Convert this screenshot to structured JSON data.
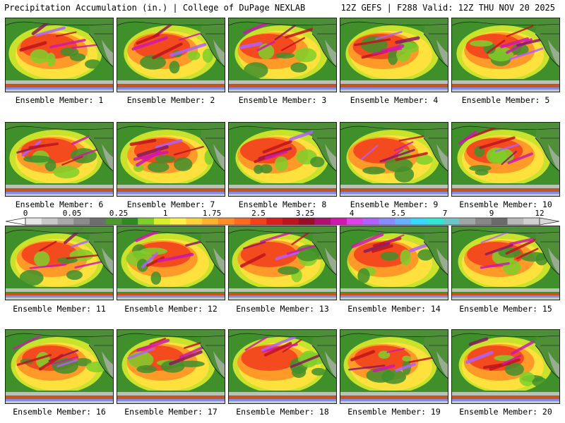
{
  "header": {
    "left": "Precipitation Accumulation (in.) | College of DuPage NEXLAB",
    "right": "12Z GEFS | F288 Valid: 12Z THU NOV 20 2025"
  },
  "panels": [
    {
      "caption": "Ensemble Member: 1"
    },
    {
      "caption": "Ensemble Member: 2"
    },
    {
      "caption": "Ensemble Member: 3"
    },
    {
      "caption": "Ensemble Member: 4"
    },
    {
      "caption": "Ensemble Member: 5"
    },
    {
      "caption": "Ensemble Member: 6"
    },
    {
      "caption": "Ensemble Member: 7"
    },
    {
      "caption": "Ensemble Member: 8"
    },
    {
      "caption": "Ensemble Member: 9"
    },
    {
      "caption": "Ensemble Member: 10"
    },
    {
      "caption": "Ensemble Member: 11"
    },
    {
      "caption": "Ensemble Member: 12"
    },
    {
      "caption": "Ensemble Member: 13"
    },
    {
      "caption": "Ensemble Member: 14"
    },
    {
      "caption": "Ensemble Member: 15"
    },
    {
      "caption": "Ensemble Member: 16"
    },
    {
      "caption": "Ensemble Member: 17"
    },
    {
      "caption": "Ensemble Member: 18"
    },
    {
      "caption": "Ensemble Member: 19"
    },
    {
      "caption": "Ensemble Member: 20"
    }
  ],
  "colorbar": {
    "labels": [
      "0",
      "0.05",
      "0.25",
      "1",
      "1.75",
      "2.5",
      "3.25",
      "4",
      "5.5",
      "7",
      "9",
      "12"
    ],
    "colors": [
      "#e6e6e6",
      "#c8c8c8",
      "#a9a9a9",
      "#8c8c8c",
      "#6e6e6e",
      "#4f9a2f",
      "#2f8a22",
      "#7fcf2a",
      "#d9ef2a",
      "#fff14a",
      "#ffd23a",
      "#ffb02e",
      "#ff8c26",
      "#ff6a1f",
      "#f4421c",
      "#e01d1d",
      "#c0141e",
      "#9a0f27",
      "#b01070",
      "#d018b0",
      "#e040e8",
      "#b060ff",
      "#8a8aff",
      "#66b0ff",
      "#3ad7ff",
      "#33e6d0",
      "#6cc6c6",
      "#9ea6a6",
      "#878787",
      "#6a6a6a",
      "#b8b8b8",
      "#d0d0d0"
    ],
    "cap_colors": [
      "#ffffff",
      "#d8d8d8"
    ]
  }
}
